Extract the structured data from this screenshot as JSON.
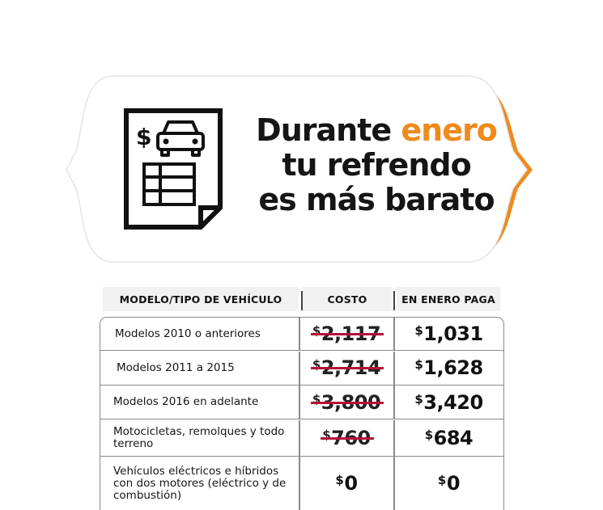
{
  "banner": {
    "headline_part1": "Durante ",
    "headline_accent": "enero",
    "headline_line2": "tu refrendo",
    "headline_line3": "es más barato",
    "accent_color": "#ef8a1c",
    "icon": "document-car-icon",
    "icon_currency": "$"
  },
  "table": {
    "headers": {
      "model": "MODELO/TIPO DE VEHÍCULO",
      "cost": "COSTO",
      "january": "EN ENERO PAGA"
    },
    "currency_symbol": "$",
    "strike_color": "#b4123a",
    "rows": [
      {
        "model": "Modelos 2010 o anteriores",
        "cost": "2,117",
        "january": "1,031",
        "cost_struck": true
      },
      {
        "model": "Modelos 2011 a 2015",
        "cost": "2,714",
        "january": "1,628",
        "cost_struck": true
      },
      {
        "model": "Modelos 2016 en adelante",
        "cost": "3,800",
        "january": "3,420",
        "cost_struck": true
      },
      {
        "model": "Motocicletas, remolques y todo terreno",
        "cost": "760",
        "january": "684",
        "cost_struck": true
      },
      {
        "model": "Vehículos eléctricos e híbridos con dos motores (eléctrico y de combustión)",
        "cost": "0",
        "january": "0",
        "cost_struck": false
      }
    ]
  }
}
